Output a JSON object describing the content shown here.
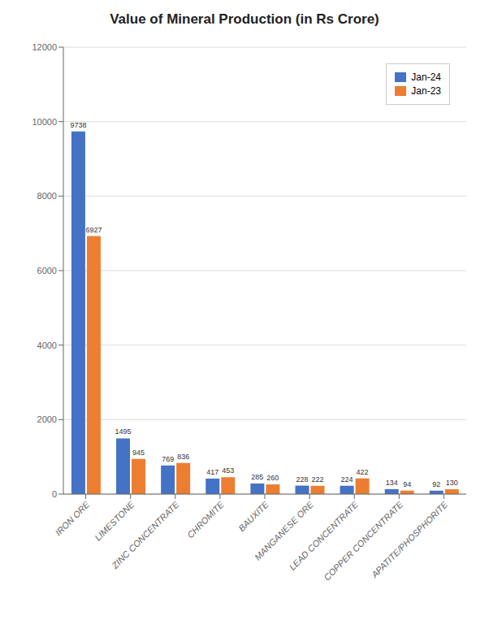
{
  "chart_data": {
    "type": "bar",
    "title": "Value of Mineral Production (in Rs Crore)",
    "categories": [
      "IRON ORE",
      "LIMESTONE",
      "ZINC CONCENTRATE",
      "CHROMITE",
      "BAUXITE",
      "MANGANESE ORE",
      "LEAD CONCENTRATE",
      "COPPER CONCENTRATE",
      "APATITE/PHOSPHORITE"
    ],
    "series": [
      {
        "name": "Jan-24",
        "color": "#4472C4",
        "values": [
          9738,
          1495,
          769,
          417,
          285,
          228,
          224,
          134,
          92
        ]
      },
      {
        "name": "Jan-23",
        "color": "#ED7D31",
        "values": [
          6927,
          945,
          836,
          453,
          260,
          222,
          422,
          94,
          130
        ]
      }
    ],
    "ylim": [
      0,
      12000
    ],
    "yticks": [
      0,
      2000,
      4000,
      6000,
      8000,
      10000,
      12000
    ],
    "grid": true,
    "legend": "upper right",
    "data_labels": true
  }
}
